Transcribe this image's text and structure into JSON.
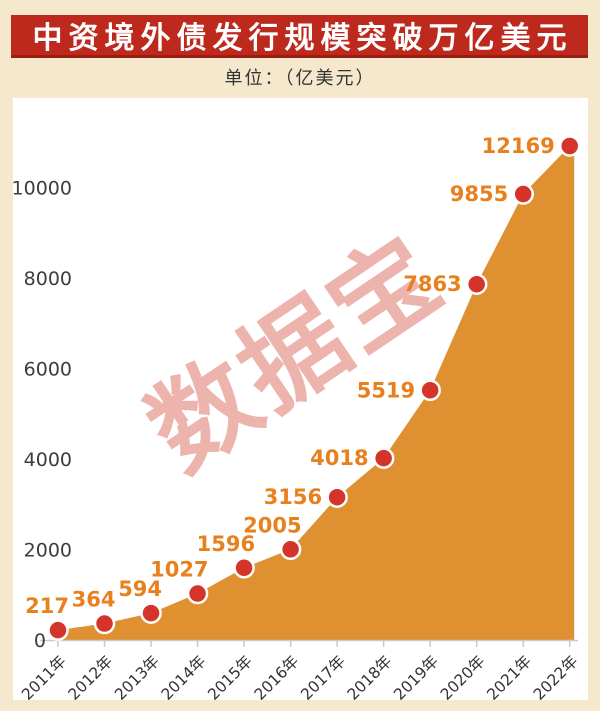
{
  "page": {
    "background_color": "#f5e8cd"
  },
  "header": {
    "title": "中资境外债发行规模突破万亿美元",
    "title_bg_color": "#bd291c",
    "title_text_color": "#ffffff",
    "unit_label": "单位：（亿美元）"
  },
  "watermark": {
    "text": "数据宝",
    "color": "rgba(208,57,43,0.38)"
  },
  "chart_data": {
    "type": "area",
    "title": "中资境外债发行规模突破万亿美元",
    "unit": "亿美元",
    "categories": [
      "2011年",
      "2012年",
      "2013年",
      "2014年",
      "2015年",
      "2016年",
      "2017年",
      "2018年",
      "2019年",
      "2020年",
      "2021年",
      "2022年"
    ],
    "values": [
      217,
      364,
      594,
      1027,
      1596,
      2005,
      3156,
      4018,
      5519,
      7863,
      9855,
      12169
    ],
    "xlabel": "",
    "ylabel": "",
    "ylim": [
      0,
      12000
    ],
    "y_ticks": [
      0,
      2000,
      4000,
      6000,
      8000,
      10000
    ],
    "grid": false,
    "legend": false,
    "colors": {
      "area_fill": "#df9131",
      "point_fill": "#d4342a",
      "point_border": "#ffffff",
      "value_label": "#e8801e",
      "axis_text": "#3d3d3d",
      "x_label_text": "#333333",
      "axis_line": "#c9c9c9"
    }
  }
}
